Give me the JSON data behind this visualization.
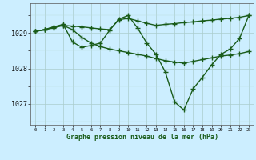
{
  "title": "Graphe pression niveau de la mer (hPa)",
  "bg_color": "#cceeff",
  "grid_color_major": "#aacccc",
  "grid_color_minor": "#bbdddd",
  "line_color": "#1a5c1a",
  "xlim": [
    -0.5,
    23.5
  ],
  "ylim": [
    1026.4,
    1029.85
  ],
  "yticks": [
    1027,
    1028,
    1029
  ],
  "xticks": [
    0,
    1,
    2,
    3,
    4,
    5,
    6,
    7,
    8,
    9,
    10,
    11,
    12,
    13,
    14,
    15,
    16,
    17,
    18,
    19,
    20,
    21,
    22,
    23
  ],
  "series1": [
    1029.05,
    1029.1,
    1029.15,
    1029.22,
    1029.2,
    1029.18,
    1029.15,
    1029.12,
    1029.1,
    1029.38,
    1029.42,
    1029.35,
    1029.28,
    1029.22,
    1029.25,
    1029.27,
    1029.3,
    1029.32,
    1029.35,
    1029.37,
    1029.4,
    1029.42,
    1029.45,
    1029.5
  ],
  "series2": [
    1029.05,
    1029.1,
    1029.18,
    1029.25,
    1028.75,
    1028.6,
    1028.65,
    1028.72,
    1029.08,
    1029.4,
    1029.5,
    1029.15,
    1028.72,
    1028.4,
    1027.9,
    1027.05,
    1026.82,
    1027.42,
    1027.75,
    1028.1,
    1028.4,
    1028.55,
    1028.85,
    1029.5
  ],
  "series3": [
    1029.05,
    1029.1,
    1029.18,
    1029.22,
    1029.1,
    1028.88,
    1028.72,
    1028.62,
    1028.55,
    1028.5,
    1028.45,
    1028.4,
    1028.35,
    1028.28,
    1028.22,
    1028.18,
    1028.15,
    1028.2,
    1028.25,
    1028.3,
    1028.35,
    1028.38,
    1028.42,
    1028.48
  ]
}
